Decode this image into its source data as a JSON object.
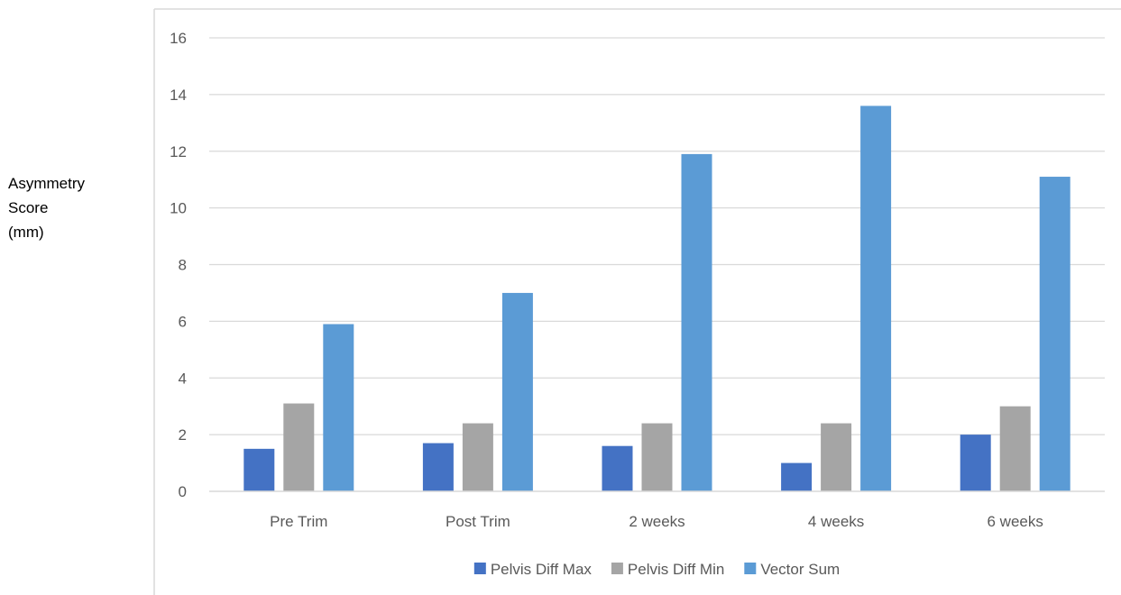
{
  "chart_data": {
    "type": "bar",
    "title": "",
    "xlabel": "",
    "ylabel": "Asymmetry\nScore\n(mm)",
    "ylim": [
      0,
      16
    ],
    "yticks": [
      0,
      2,
      4,
      6,
      8,
      10,
      12,
      14,
      16
    ],
    "grid": true,
    "legend_position": "bottom",
    "categories": [
      "Pre Trim",
      "Post Trim",
      "2 weeks",
      "4 weeks",
      "6 weeks"
    ],
    "series": [
      {
        "name": "Pelvis Diff Max",
        "color": "#4472c4",
        "values": [
          1.5,
          1.7,
          1.6,
          1.0,
          2.0
        ]
      },
      {
        "name": "Pelvis Diff Min",
        "color": "#a5a5a5",
        "values": [
          3.1,
          2.4,
          2.4,
          2.4,
          3.0
        ]
      },
      {
        "name": "Vector Sum",
        "color": "#5b9bd5",
        "values": [
          5.9,
          7.0,
          11.9,
          13.6,
          11.1
        ]
      }
    ]
  }
}
